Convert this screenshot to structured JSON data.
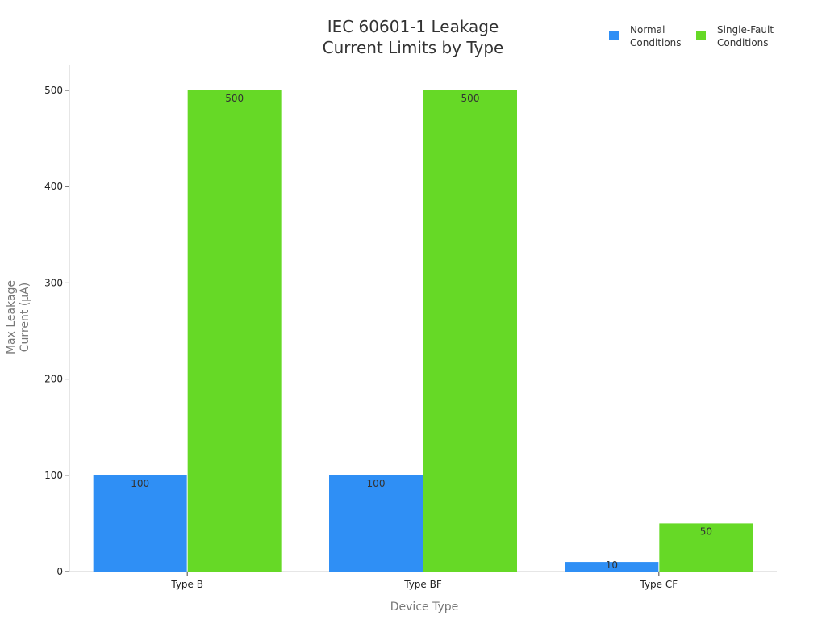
{
  "chart_data": {
    "type": "bar",
    "title": [
      "IEC 60601-1 Leakage",
      "Current Limits by Type"
    ],
    "xlabel": "Device Type",
    "ylabel": [
      "Max Leakage",
      "Current (µA)"
    ],
    "categories": [
      "Type B",
      "Type BF",
      "Type CF"
    ],
    "series": [
      {
        "name": [
          "Normal",
          "Conditions"
        ],
        "values": [
          100,
          100,
          10
        ],
        "color": "#2f8ff5"
      },
      {
        "name": [
          "Single-Fault",
          "Conditions"
        ],
        "values": [
          500,
          500,
          50
        ],
        "color": "#66d926"
      }
    ],
    "ylim": [
      0,
      525
    ],
    "yticks": [
      0,
      100,
      200,
      300,
      400,
      500
    ],
    "grid": false,
    "legend": "top-right",
    "data_labels": true
  }
}
